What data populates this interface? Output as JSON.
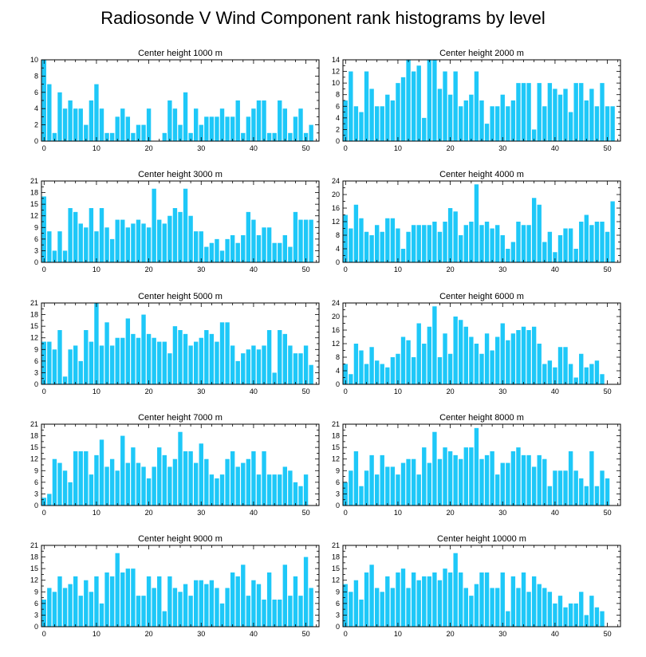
{
  "title": "Radiosonde V Wind Component rank histograms by level",
  "bar_color": "#1ec8f8",
  "chart_data": [
    {
      "type": "bar",
      "title": "Center height 1000 m",
      "ylim": [
        0,
        10
      ],
      "yticks": [
        0,
        2,
        4,
        6,
        8,
        10
      ],
      "xlim": [
        -0.5,
        52.5
      ],
      "xticks": [
        0,
        10,
        20,
        30,
        40,
        50
      ],
      "values": [
        10,
        7,
        1,
        6,
        4,
        5,
        4,
        4,
        2,
        5,
        7,
        4,
        1,
        1,
        3,
        4,
        3,
        1,
        2,
        2,
        4,
        0,
        0,
        1,
        5,
        4,
        2,
        6,
        1,
        4,
        2,
        3,
        3,
        3,
        4,
        3,
        3,
        5,
        1,
        3,
        4,
        5,
        5,
        1,
        1,
        5,
        4,
        1,
        3,
        4,
        1,
        2
      ]
    },
    {
      "type": "bar",
      "title": "Center height 2000 m",
      "ylim": [
        0,
        14
      ],
      "yticks": [
        0,
        2,
        4,
        6,
        8,
        10,
        12,
        14
      ],
      "xlim": [
        -0.5,
        52.5
      ],
      "xticks": [
        0,
        10,
        20,
        30,
        40,
        50
      ],
      "values": [
        7,
        12,
        6,
        5,
        12,
        9,
        6,
        6,
        8,
        7,
        10,
        11,
        14,
        12,
        13,
        4,
        14,
        14,
        9,
        12,
        8,
        12,
        6,
        7,
        8,
        12,
        7,
        3,
        6,
        6,
        8,
        6,
        7,
        10,
        10,
        10,
        2,
        10,
        6,
        10,
        9,
        8,
        9,
        5,
        10,
        10,
        7,
        9,
        6,
        10,
        6,
        6
      ]
    },
    {
      "type": "bar",
      "title": "Center height 3000 m",
      "ylim": [
        0,
        21
      ],
      "yticks": [
        0,
        3,
        6,
        9,
        12,
        15,
        18,
        21
      ],
      "xlim": [
        -0.5,
        52.5
      ],
      "xticks": [
        0,
        10,
        20,
        30,
        40,
        50
      ],
      "values": [
        17,
        8,
        3,
        8,
        3,
        14,
        13,
        10,
        9,
        14,
        8,
        14,
        9,
        6,
        11,
        11,
        9,
        10,
        11,
        10,
        9,
        19,
        11,
        10,
        12,
        14,
        13,
        19,
        12,
        8,
        8,
        4,
        5,
        6,
        3,
        6,
        7,
        5,
        7,
        13,
        11,
        7,
        9,
        9,
        5,
        5,
        7,
        4,
        13,
        11,
        11,
        11
      ]
    },
    {
      "type": "bar",
      "title": "Center height 4000 m",
      "ylim": [
        0,
        24
      ],
      "yticks": [
        0,
        4,
        8,
        12,
        16,
        20,
        24
      ],
      "xlim": [
        -0.5,
        52.5
      ],
      "xticks": [
        0,
        10,
        20,
        30,
        40,
        50
      ],
      "values": [
        14,
        10,
        17,
        13,
        9,
        8,
        11,
        9,
        13,
        13,
        10,
        4,
        9,
        11,
        11,
        11,
        11,
        12,
        9,
        12,
        16,
        15,
        8,
        11,
        12,
        23,
        11,
        12,
        10,
        11,
        8,
        4,
        6,
        12,
        11,
        11,
        19,
        17,
        6,
        9,
        3,
        8,
        10,
        10,
        4,
        12,
        14,
        11,
        12,
        12,
        9,
        18
      ]
    },
    {
      "type": "bar",
      "title": "Center height 5000 m",
      "ylim": [
        0,
        21
      ],
      "yticks": [
        0,
        3,
        6,
        9,
        12,
        15,
        18,
        21
      ],
      "xlim": [
        -0.5,
        52.5
      ],
      "xticks": [
        0,
        10,
        20,
        30,
        40,
        50
      ],
      "values": [
        11,
        11,
        9,
        14,
        2,
        9,
        10,
        6,
        14,
        11,
        21,
        10,
        16,
        10,
        12,
        12,
        17,
        13,
        12,
        18,
        13,
        12,
        11,
        11,
        8,
        15,
        14,
        13,
        10,
        11,
        12,
        14,
        13,
        11,
        16,
        16,
        10,
        6,
        8,
        9,
        10,
        9,
        10,
        14,
        3,
        14,
        13,
        10,
        8,
        8,
        10,
        5
      ]
    },
    {
      "type": "bar",
      "title": "Center height 6000 m",
      "ylim": [
        0,
        24
      ],
      "yticks": [
        0,
        4,
        8,
        12,
        16,
        20,
        24
      ],
      "xlim": [
        -0.5,
        52.5
      ],
      "xticks": [
        0,
        10,
        20,
        30,
        40,
        50
      ],
      "values": [
        6,
        3,
        12,
        10,
        6,
        11,
        7,
        6,
        5,
        8,
        9,
        14,
        13,
        8,
        18,
        12,
        17,
        23,
        8,
        15,
        9,
        20,
        19,
        17,
        14,
        12,
        9,
        15,
        10,
        14,
        18,
        13,
        15,
        16,
        17,
        16,
        17,
        12,
        6,
        7,
        5,
        11,
        11,
        6,
        2,
        9,
        5,
        6,
        7,
        3,
        0,
        0
      ]
    },
    {
      "type": "bar",
      "title": "Center height 7000 m",
      "ylim": [
        0,
        21
      ],
      "yticks": [
        0,
        3,
        6,
        9,
        12,
        15,
        18,
        21
      ],
      "xlim": [
        -0.5,
        52.5
      ],
      "xticks": [
        0,
        10,
        20,
        30,
        40,
        50
      ],
      "values": [
        2,
        3,
        12,
        11,
        9,
        6,
        14,
        14,
        14,
        8,
        13,
        17,
        10,
        12,
        9,
        18,
        11,
        15,
        11,
        10,
        7,
        10,
        15,
        13,
        10,
        12,
        19,
        14,
        14,
        11,
        16,
        12,
        8,
        7,
        8,
        12,
        14,
        10,
        11,
        12,
        14,
        8,
        14,
        8,
        8,
        8,
        10,
        9,
        6,
        5,
        8,
        0
      ]
    },
    {
      "type": "bar",
      "title": "Center height 8000 m",
      "ylim": [
        0,
        21
      ],
      "yticks": [
        0,
        3,
        6,
        9,
        12,
        15,
        18,
        21
      ],
      "xlim": [
        -0.5,
        52.5
      ],
      "xticks": [
        0,
        10,
        20,
        30,
        40,
        50
      ],
      "values": [
        6,
        9,
        14,
        5,
        9,
        13,
        8,
        13,
        10,
        10,
        8,
        11,
        12,
        12,
        8,
        15,
        11,
        19,
        12,
        15,
        14,
        13,
        12,
        15,
        15,
        20,
        12,
        13,
        14,
        8,
        11,
        11,
        14,
        15,
        13,
        13,
        10,
        13,
        12,
        5,
        9,
        9,
        9,
        14,
        9,
        7,
        5,
        14,
        5,
        9,
        7,
        0
      ]
    },
    {
      "type": "bar",
      "title": "Center height 9000 m",
      "ylim": [
        0,
        21
      ],
      "yticks": [
        0,
        3,
        6,
        9,
        12,
        15,
        18,
        21
      ],
      "xlim": [
        -0.5,
        52.5
      ],
      "xticks": [
        0,
        10,
        20,
        30,
        40,
        50
      ],
      "values": [
        7,
        10,
        9,
        13,
        10,
        11,
        13,
        8,
        12,
        9,
        13,
        6,
        14,
        13,
        19,
        14,
        15,
        15,
        8,
        8,
        13,
        10,
        13,
        4,
        13,
        10,
        9,
        11,
        8,
        12,
        12,
        11,
        12,
        10,
        6,
        10,
        14,
        13,
        16,
        8,
        12,
        11,
        7,
        14,
        7,
        7,
        16,
        8,
        13,
        8,
        18,
        10
      ]
    },
    {
      "type": "bar",
      "title": "Center height 10000 m",
      "ylim": [
        0,
        21
      ],
      "yticks": [
        0,
        3,
        6,
        9,
        12,
        15,
        18,
        21
      ],
      "xlim": [
        -0.5,
        52.5
      ],
      "xticks": [
        0,
        10,
        20,
        30,
        40,
        50
      ],
      "values": [
        11,
        9,
        12,
        7,
        14,
        16,
        10,
        9,
        13,
        10,
        14,
        15,
        10,
        14,
        12,
        13,
        13,
        14,
        12,
        15,
        14,
        19,
        14,
        10,
        8,
        11,
        14,
        14,
        10,
        10,
        14,
        4,
        13,
        10,
        14,
        9,
        13,
        11,
        10,
        9,
        6,
        8,
        5,
        6,
        6,
        9,
        3,
        8,
        5,
        4,
        0,
        0
      ]
    }
  ]
}
